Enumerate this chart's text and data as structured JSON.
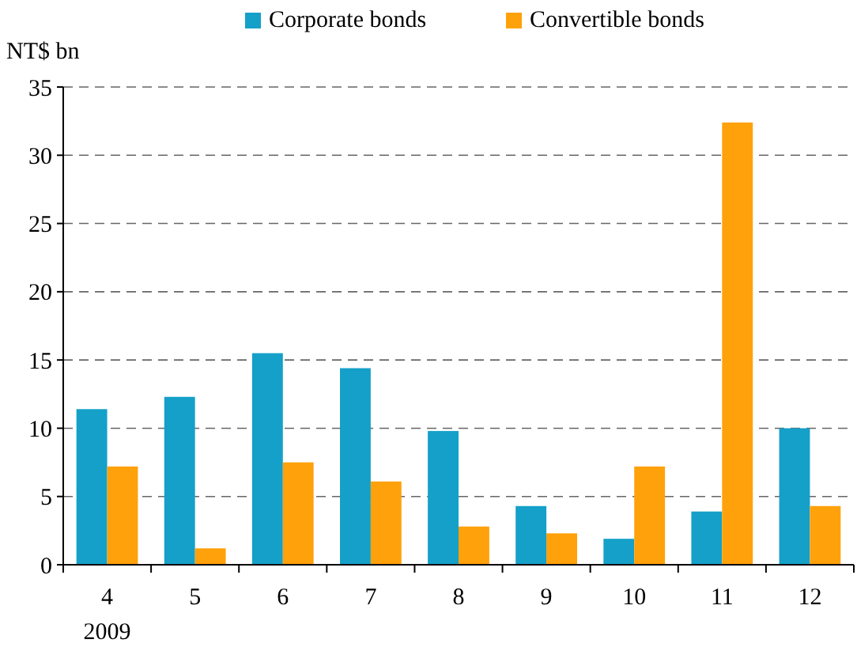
{
  "chart_data": {
    "type": "bar",
    "ylabel": "NT$ bn",
    "categories": [
      "4",
      "5",
      "6",
      "7",
      "8",
      "9",
      "10",
      "11",
      "12"
    ],
    "series": [
      {
        "name": "Corporate bonds",
        "color": "#14a0c8",
        "values": [
          11.4,
          12.3,
          15.5,
          14.4,
          9.8,
          4.3,
          1.9,
          3.9,
          10.0
        ]
      },
      {
        "name": "Convertible bonds",
        "color": "#ffa10a",
        "values": [
          7.2,
          1.2,
          7.5,
          6.1,
          2.8,
          2.3,
          7.2,
          32.4,
          4.3
        ]
      }
    ],
    "ylim": [
      0,
      35
    ],
    "yticks": [
      0,
      5,
      10,
      15,
      20,
      25,
      30,
      35
    ],
    "grid": "y",
    "legend": "top",
    "annotations": [
      "2009"
    ]
  }
}
